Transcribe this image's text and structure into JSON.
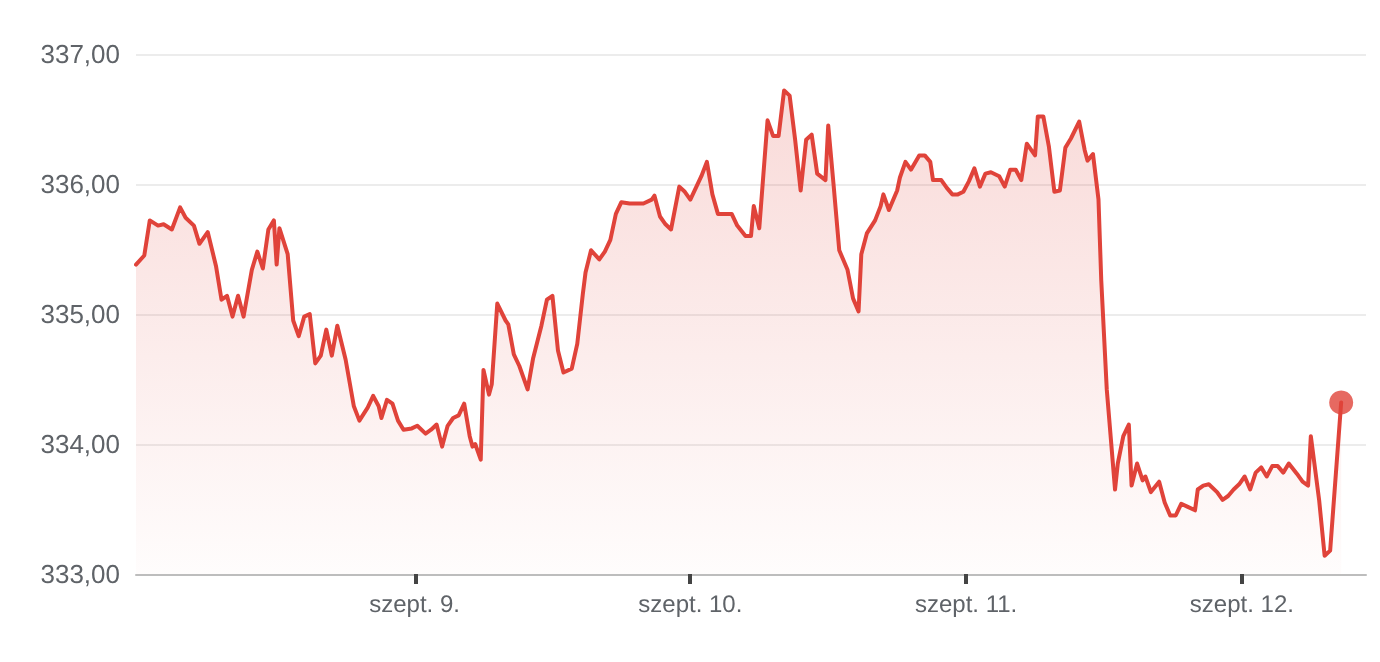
{
  "chart_data": {
    "type": "area",
    "series": [
      {
        "color": "#e0433a",
        "x": [
          7.99,
          8.02,
          8.04,
          8.07,
          8.09,
          8.12,
          8.15,
          8.17,
          8.2,
          8.22,
          8.25,
          8.28,
          8.3,
          8.32,
          8.34,
          8.36,
          8.38,
          8.41,
          8.43,
          8.45,
          8.47,
          8.49,
          8.5,
          8.51,
          8.54,
          8.56,
          8.58,
          8.6,
          8.62,
          8.64,
          8.66,
          8.68,
          8.7,
          8.72,
          8.75,
          8.78,
          8.8,
          8.83,
          8.85,
          8.87,
          8.88,
          8.9,
          8.92,
          8.94,
          8.96,
          8.99,
          9.01,
          9.04,
          9.06,
          9.08,
          9.1,
          9.12,
          9.14,
          9.16,
          9.18,
          9.2,
          9.21,
          9.22,
          9.24,
          9.25,
          9.27,
          9.28,
          9.3,
          9.33,
          9.34,
          9.36,
          9.38,
          9.41,
          9.43,
          9.46,
          9.48,
          9.5,
          9.52,
          9.54,
          9.57,
          9.59,
          9.61,
          9.62,
          9.64,
          9.67,
          9.69,
          9.71,
          9.73,
          9.75,
          9.78,
          9.8,
          9.83,
          9.86,
          9.87,
          9.89,
          9.91,
          9.93,
          9.96,
          9.98,
          10.0,
          10.02,
          10.04,
          10.06,
          10.08,
          10.1,
          10.12,
          10.15,
          10.17,
          10.2,
          10.22,
          10.23,
          10.25,
          10.28,
          10.3,
          10.32,
          10.34,
          10.36,
          10.38,
          10.4,
          10.42,
          10.44,
          10.46,
          10.49,
          10.5,
          10.52,
          10.54,
          10.57,
          10.59,
          10.61,
          10.62,
          10.64,
          10.67,
          10.69,
          10.7,
          10.72,
          10.75,
          10.76,
          10.78,
          10.8,
          10.83,
          10.85,
          10.87,
          10.88,
          10.91,
          10.93,
          10.95,
          10.97,
          10.99,
          11.01,
          11.03,
          11.05,
          11.07,
          11.09,
          11.12,
          11.14,
          11.16,
          11.18,
          11.2,
          11.22,
          11.25,
          11.26,
          11.28,
          11.3,
          11.32,
          11.34,
          11.36,
          11.38,
          11.41,
          11.43,
          11.44,
          11.46,
          11.48,
          11.49,
          11.51,
          11.54,
          11.55,
          11.57,
          11.59,
          11.6,
          11.62,
          11.64,
          11.65,
          11.67,
          11.7,
          11.72,
          11.74,
          11.76,
          11.78,
          11.8,
          11.83,
          11.84,
          11.86,
          11.88,
          11.91,
          11.93,
          11.95,
          11.97,
          11.99,
          12.01,
          12.03,
          12.05,
          12.07,
          12.09,
          12.11,
          12.13,
          12.15,
          12.17,
          12.2,
          12.22,
          12.24,
          12.25,
          12.28,
          12.3,
          12.32,
          12.36
        ],
        "values": [
          335.38,
          335.45,
          335.72,
          335.68,
          335.69,
          335.65,
          335.82,
          335.74,
          335.68,
          335.54,
          335.63,
          335.37,
          335.11,
          335.14,
          334.98,
          335.14,
          334.98,
          335.34,
          335.48,
          335.35,
          335.65,
          335.72,
          335.38,
          335.66,
          335.46,
          334.95,
          334.83,
          334.98,
          335.0,
          334.62,
          334.68,
          334.88,
          334.68,
          334.91,
          334.65,
          334.29,
          334.18,
          334.28,
          334.37,
          334.29,
          334.2,
          334.34,
          334.31,
          334.18,
          334.11,
          334.12,
          334.14,
          334.08,
          334.11,
          334.15,
          333.98,
          334.14,
          334.2,
          334.22,
          334.31,
          334.06,
          333.98,
          334.0,
          333.88,
          334.57,
          334.38,
          334.46,
          335.08,
          334.95,
          334.92,
          334.69,
          334.6,
          334.42,
          334.66,
          334.91,
          335.11,
          335.14,
          334.72,
          334.55,
          334.58,
          334.77,
          335.15,
          335.32,
          335.49,
          335.42,
          335.48,
          335.57,
          335.77,
          335.86,
          335.85,
          335.85,
          335.85,
          335.88,
          335.91,
          335.75,
          335.69,
          335.65,
          335.98,
          335.94,
          335.88,
          335.97,
          336.06,
          336.17,
          335.92,
          335.77,
          335.77,
          335.77,
          335.68,
          335.6,
          335.6,
          335.83,
          335.66,
          336.49,
          336.37,
          336.37,
          336.72,
          336.68,
          336.34,
          335.95,
          336.34,
          336.38,
          336.08,
          336.03,
          336.45,
          335.98,
          335.49,
          335.34,
          335.12,
          335.02,
          335.46,
          335.62,
          335.72,
          335.83,
          335.92,
          335.8,
          335.95,
          336.05,
          336.17,
          336.11,
          336.22,
          336.22,
          336.17,
          336.03,
          336.03,
          335.97,
          335.92,
          335.92,
          335.94,
          336.02,
          336.12,
          335.98,
          336.08,
          336.09,
          336.06,
          335.98,
          336.11,
          336.11,
          336.03,
          336.31,
          336.22,
          336.52,
          336.52,
          336.29,
          335.94,
          335.95,
          336.28,
          336.35,
          336.48,
          336.26,
          336.18,
          336.23,
          335.88,
          335.26,
          334.42,
          333.65,
          333.85,
          334.06,
          334.15,
          333.68,
          333.85,
          333.72,
          333.75,
          333.63,
          333.71,
          333.55,
          333.45,
          333.45,
          333.54,
          333.52,
          333.49,
          333.65,
          333.68,
          333.69,
          333.63,
          333.57,
          333.6,
          333.65,
          333.69,
          333.75,
          333.65,
          333.78,
          333.82,
          333.75,
          333.83,
          333.83,
          333.78,
          333.85,
          333.77,
          333.71,
          333.68,
          334.06,
          333.57,
          333.14,
          333.18,
          334.32
        ]
      },
      {
        "type": "scatter",
        "color": "#e0433a",
        "marker": "circle",
        "x": [
          12.36
        ],
        "values": [
          334.32
        ]
      }
    ],
    "xlim": [
      7.99,
      12.45
    ],
    "xticks": [
      {
        "value": 9,
        "label": "szept. 9."
      },
      {
        "value": 10,
        "label": "szept. 10."
      },
      {
        "value": 11,
        "label": "szept. 11."
      },
      {
        "value": 12,
        "label": "szept. 12."
      }
    ],
    "ylim": [
      333,
      337
    ],
    "yticks": [
      {
        "value": 333,
        "label": "333,00"
      },
      {
        "value": 334,
        "label": "334,00"
      },
      {
        "value": 335,
        "label": "335,00"
      },
      {
        "value": 336,
        "label": "336,00"
      },
      {
        "value": 337,
        "label": "337,00"
      }
    ],
    "grid": "y",
    "marker": "none",
    "line_style": "solid"
  }
}
